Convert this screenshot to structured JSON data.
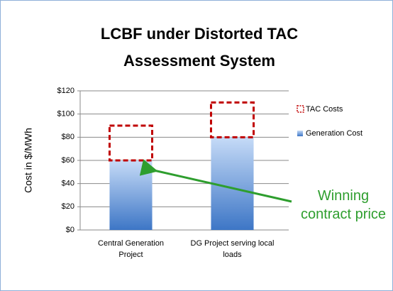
{
  "chart_data": {
    "type": "stacked_bar",
    "title": "LCBF under Distorted TAC Assessment System",
    "y_label": "Cost in $/MWh",
    "categories": [
      "Central Generation Project",
      "DG Project serving local loads"
    ],
    "series": [
      {
        "name": "Generation Cost",
        "color": "#4f81bd",
        "values": [
          60,
          80
        ]
      },
      {
        "name": "TAC Costs",
        "color": "#c00000",
        "values": [
          30,
          30
        ]
      }
    ],
    "ylim": [
      0,
      120
    ],
    "yticks": [
      {
        "value": 0,
        "label": "$0"
      },
      {
        "value": 20,
        "label": "$20"
      },
      {
        "value": 40,
        "label": "$40"
      },
      {
        "value": 60,
        "label": "$60"
      },
      {
        "value": 80,
        "label": "$80"
      },
      {
        "value": 100,
        "label": "$100"
      },
      {
        "value": 120,
        "label": "$120"
      }
    ],
    "grid": true,
    "legend": "right",
    "annotation": "Winning contract price"
  }
}
